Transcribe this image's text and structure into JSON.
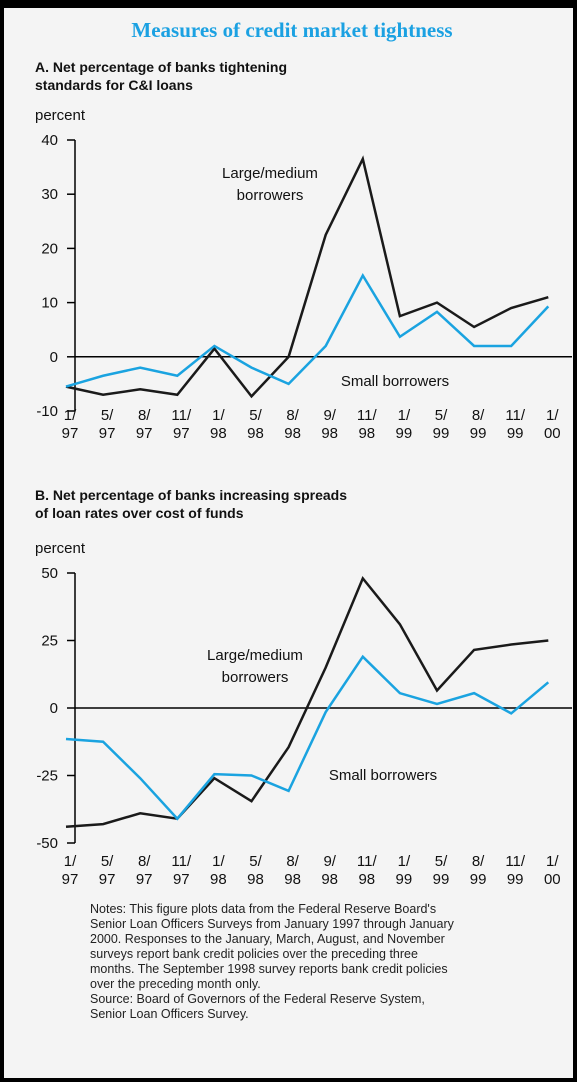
{
  "title": "Measures of credit market tightness",
  "notes": [
    "Notes: This figure plots data from the Federal Reserve Board's",
    "Senior Loan Officers Surveys from January 1997 through January",
    "2000. Responses to the January, March, August, and November",
    "surveys report bank credit policies over the preceding three",
    "months. The September 1998 survey reports bank credit policies",
    "over the preceding month only.",
    "Source: Board of Governors of the Federal Reserve System,",
    "Senior Loan Officers Survey."
  ],
  "chart_data": [
    {
      "type": "line",
      "title": [
        "A. Net percentage of banks tightening",
        "standards for C&I loans"
      ],
      "ylabel": "percent",
      "categories": [
        "1/97",
        "5/97",
        "8/97",
        "11/97",
        "1/98",
        "5/98",
        "8/98",
        "9/98",
        "11/98",
        "1/99",
        "5/99",
        "8/99",
        "11/99",
        "1/00"
      ],
      "series": [
        {
          "name": "Large/medium borrowers",
          "color": "#1a1a1a",
          "values": [
            -5.5,
            -7,
            -6,
            -7,
            1.5,
            -7.3,
            0,
            22.5,
            36.5,
            7.5,
            10,
            5.5,
            9,
            11
          ]
        },
        {
          "name": "Small borrowers",
          "color": "#1aa3e0",
          "values": [
            -5.5,
            -3.5,
            -2,
            -3.5,
            2,
            -2,
            -5,
            2,
            15,
            3.7,
            8.3,
            2,
            2,
            9.3
          ]
        }
      ],
      "ylim": [
        -10,
        40
      ],
      "yticks": [
        -10,
        0,
        10,
        20,
        30,
        40
      ]
    },
    {
      "type": "line",
      "title": [
        "B. Net percentage of banks increasing spreads",
        "of loan rates over cost of funds"
      ],
      "ylabel": "percent",
      "categories": [
        "1/97",
        "5/97",
        "8/97",
        "11/97",
        "1/98",
        "5/98",
        "8/98",
        "9/98",
        "11/98",
        "1/99",
        "5/99",
        "8/99",
        "11/99",
        "1/00"
      ],
      "series": [
        {
          "name": "Large/medium borrowers",
          "color": "#1a1a1a",
          "values": [
            -44,
            -43,
            -39,
            -41,
            -26,
            -34.5,
            -14.5,
            15,
            48,
            31,
            6.5,
            21.5,
            23.5,
            25
          ]
        },
        {
          "name": "Small borrowers",
          "color": "#1aa3e0",
          "values": [
            -11.5,
            -12.5,
            -26,
            -41,
            -24.5,
            -25,
            -30.7,
            -1.5,
            19,
            5.5,
            1.5,
            5.5,
            -2,
            9.5
          ]
        }
      ],
      "ylim": [
        -50,
        50
      ],
      "yticks": [
        -50,
        -25,
        0,
        25,
        50
      ]
    }
  ]
}
